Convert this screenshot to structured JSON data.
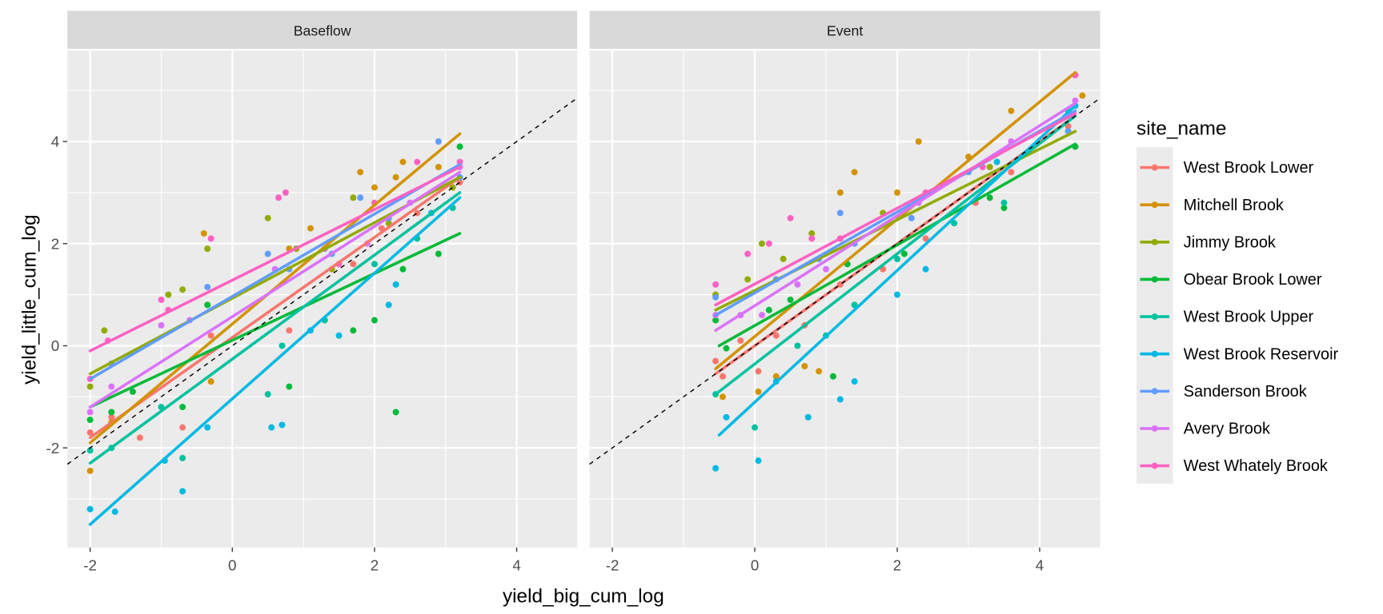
{
  "chart_data": {
    "type": "scatter",
    "facets": [
      "Baseflow",
      "Event"
    ],
    "xlabel": "yield_big_cum_log",
    "ylabel": "yield_little_cum_log",
    "xlim": [
      -2.32,
      4.85
    ],
    "ylim": [
      -3.95,
      5.78
    ],
    "x_ticks": [
      -2,
      0,
      2,
      4
    ],
    "y_ticks": [
      -2,
      0,
      2,
      4
    ],
    "grid": true,
    "reference_line": {
      "type": "identity",
      "style": "dashed",
      "color": "#000000"
    },
    "legend": {
      "title": "site_name",
      "placement": "right"
    },
    "series": [
      {
        "name": "West Brook Lower",
        "color": "#F8766D",
        "fit": {
          "Baseflow": [
            [
              -2,
              -1.8
            ],
            [
              3.2,
              3.3
            ]
          ],
          "Event": [
            [
              -0.55,
              -0.55
            ],
            [
              4.5,
              4.5
            ]
          ]
        },
        "points": {
          "Baseflow": [
            [
              -2,
              -1.7
            ],
            [
              -1.7,
              -1.4
            ],
            [
              -1.3,
              -1.8
            ],
            [
              -0.7,
              -1.6
            ],
            [
              -0.3,
              0.2
            ],
            [
              0.8,
              0.3
            ],
            [
              1.3,
              0.5
            ],
            [
              1.7,
              1.6
            ],
            [
              2.1,
              2.3
            ],
            [
              2.6,
              2.6
            ],
            [
              3.2,
              3.2
            ]
          ],
          "Event": [
            [
              -0.55,
              -0.3
            ],
            [
              -0.45,
              -0.6
            ],
            [
              -0.2,
              0.1
            ],
            [
              0.05,
              -0.5
            ],
            [
              0.3,
              0.2
            ],
            [
              0.7,
              0.4
            ],
            [
              1.2,
              1.2
            ],
            [
              1.8,
              1.5
            ],
            [
              2.4,
              2.1
            ],
            [
              3.1,
              2.8
            ],
            [
              3.6,
              3.4
            ],
            [
              4.4,
              4.3
            ]
          ]
        }
      },
      {
        "name": "Mitchell Brook",
        "color": "#D39200",
        "fit": {
          "Baseflow": [
            [
              -2,
              -1.9
            ],
            [
              3.2,
              4.15
            ]
          ],
          "Event": [
            [
              -0.55,
              -0.45
            ],
            [
              4.5,
              5.35
            ]
          ]
        },
        "points": {
          "Baseflow": [
            [
              -2,
              -2.45
            ],
            [
              -1.7,
              -1.5
            ],
            [
              -0.4,
              2.2
            ],
            [
              -0.3,
              -0.7
            ],
            [
              0.8,
              1.9
            ],
            [
              1.1,
              2.3
            ],
            [
              1.8,
              3.4
            ],
            [
              2.0,
              3.1
            ],
            [
              2.3,
              3.3
            ],
            [
              2.4,
              3.6
            ],
            [
              2.9,
              3.5
            ]
          ],
          "Event": [
            [
              -0.55,
              1.0
            ],
            [
              -0.45,
              -1.0
            ],
            [
              0.05,
              -0.9
            ],
            [
              0.3,
              -0.6
            ],
            [
              0.7,
              -0.4
            ],
            [
              0.9,
              -0.5
            ],
            [
              1.2,
              3.0
            ],
            [
              1.4,
              3.4
            ],
            [
              2.0,
              3.0
            ],
            [
              2.3,
              4.0
            ],
            [
              3.0,
              3.7
            ],
            [
              3.6,
              4.6
            ],
            [
              4.5,
              5.3
            ],
            [
              4.6,
              4.9
            ]
          ]
        }
      },
      {
        "name": "Jimmy Brook",
        "color": "#93AA00",
        "fit": {
          "Baseflow": [
            [
              -2,
              -0.55
            ],
            [
              3.2,
              3.3
            ]
          ],
          "Event": [
            [
              -0.55,
              0.7
            ],
            [
              4.5,
              4.2
            ]
          ]
        },
        "points": {
          "Baseflow": [
            [
              -2,
              -0.8
            ],
            [
              -1.8,
              0.3
            ],
            [
              -0.9,
              1.0
            ],
            [
              -0.7,
              1.1
            ],
            [
              -0.35,
              1.9
            ],
            [
              0.5,
              2.5
            ],
            [
              0.9,
              1.9
            ],
            [
              1.4,
              1.5
            ],
            [
              1.7,
              2.9
            ],
            [
              2.2,
              2.4
            ],
            [
              3.1,
              3.1
            ]
          ],
          "Event": [
            [
              -0.55,
              1.0
            ],
            [
              -0.1,
              1.3
            ],
            [
              0.1,
              2.0
            ],
            [
              0.4,
              1.7
            ],
            [
              0.8,
              2.2
            ],
            [
              1.2,
              2.1
            ],
            [
              1.8,
              2.6
            ],
            [
              2.4,
              3.0
            ],
            [
              3.3,
              3.5
            ],
            [
              4.4,
              4.2
            ]
          ]
        }
      },
      {
        "name": "Obear Brook Lower",
        "color": "#00BA38",
        "fit": {
          "Baseflow": [
            [
              -2,
              -1.2
            ],
            [
              3.2,
              2.2
            ]
          ],
          "Event": [
            [
              -0.5,
              0.0
            ],
            [
              4.5,
              3.95
            ]
          ]
        },
        "points": {
          "Baseflow": [
            [
              -2,
              -1.45
            ],
            [
              -1.7,
              -1.3
            ],
            [
              -1.4,
              -0.9
            ],
            [
              -0.7,
              -1.2
            ],
            [
              -0.35,
              0.8
            ],
            [
              0.8,
              -0.8
            ],
            [
              1.7,
              0.3
            ],
            [
              2.0,
              0.5
            ],
            [
              2.3,
              -1.3
            ],
            [
              2.4,
              1.5
            ],
            [
              2.9,
              1.8
            ],
            [
              3.2,
              3.9
            ]
          ],
          "Event": [
            [
              -0.55,
              0.5
            ],
            [
              -0.4,
              -0.05
            ],
            [
              0.2,
              0.7
            ],
            [
              0.5,
              0.9
            ],
            [
              1.1,
              -0.6
            ],
            [
              1.3,
              1.6
            ],
            [
              2.1,
              1.8
            ],
            [
              3.3,
              2.9
            ],
            [
              3.5,
              2.7
            ],
            [
              4.5,
              3.9
            ]
          ]
        }
      },
      {
        "name": "West Brook Upper",
        "color": "#00C19F",
        "fit": {
          "Baseflow": [
            [
              -2,
              -2.3
            ],
            [
              3.2,
              3.0
            ]
          ],
          "Event": [
            [
              -0.55,
              -0.95
            ],
            [
              4.5,
              4.5
            ]
          ]
        },
        "points": {
          "Baseflow": [
            [
              -2,
              -2.05
            ],
            [
              -1.7,
              -2.0
            ],
            [
              -1.0,
              -1.2
            ],
            [
              -0.7,
              -2.2
            ],
            [
              0.5,
              -0.95
            ],
            [
              0.7,
              0.0
            ],
            [
              1.3,
              0.5
            ],
            [
              2.0,
              1.6
            ],
            [
              2.6,
              2.1
            ],
            [
              3.1,
              2.7
            ]
          ],
          "Event": [
            [
              -0.55,
              -0.95
            ],
            [
              0.0,
              -1.6
            ],
            [
              0.6,
              0.0
            ],
            [
              1.0,
              0.2
            ],
            [
              1.4,
              0.8
            ],
            [
              2.0,
              1.7
            ],
            [
              2.8,
              2.4
            ],
            [
              3.5,
              2.8
            ],
            [
              4.4,
              4.6
            ]
          ]
        }
      },
      {
        "name": "West Brook Reservoir",
        "color": "#00B9E3",
        "fit": {
          "Baseflow": [
            [
              -2,
              -3.5
            ],
            [
              3.2,
              2.9
            ]
          ],
          "Event": [
            [
              -0.5,
              -1.75
            ],
            [
              4.5,
              4.7
            ]
          ]
        },
        "points": {
          "Baseflow": [
            [
              -2,
              -3.2
            ],
            [
              -1.65,
              -3.25
            ],
            [
              -0.95,
              -2.25
            ],
            [
              -0.7,
              -2.85
            ],
            [
              -0.35,
              -1.6
            ],
            [
              0.55,
              -1.6
            ],
            [
              0.7,
              -1.55
            ],
            [
              1.1,
              0.3
            ],
            [
              1.5,
              0.2
            ],
            [
              2.2,
              0.8
            ],
            [
              2.3,
              1.2
            ],
            [
              2.8,
              2.6
            ]
          ],
          "Event": [
            [
              -0.55,
              -2.4
            ],
            [
              -0.4,
              -1.4
            ],
            [
              0.05,
              -2.25
            ],
            [
              0.3,
              -0.7
            ],
            [
              0.75,
              -1.4
            ],
            [
              1.2,
              -1.05
            ],
            [
              1.4,
              -0.7
            ],
            [
              2.0,
              1.0
            ],
            [
              2.4,
              1.5
            ],
            [
              3.4,
              3.6
            ],
            [
              4.5,
              4.7
            ]
          ]
        }
      },
      {
        "name": "Sanderson Brook",
        "color": "#619CFF",
        "fit": {
          "Baseflow": [
            [
              -2,
              -0.65
            ],
            [
              3.2,
              3.55
            ]
          ],
          "Event": [
            [
              -0.55,
              0.6
            ],
            [
              4.5,
              4.6
            ]
          ]
        },
        "points": {
          "Baseflow": [
            [
              -1.7,
              -0.35
            ],
            [
              -0.35,
              1.15
            ],
            [
              0.5,
              1.8
            ],
            [
              0.8,
              1.5
            ],
            [
              1.4,
              1.8
            ],
            [
              1.8,
              2.9
            ],
            [
              2.2,
              2.5
            ],
            [
              2.9,
              4.0
            ],
            [
              3.2,
              3.3
            ]
          ],
          "Event": [
            [
              -0.55,
              0.95
            ],
            [
              0.3,
              1.3
            ],
            [
              0.9,
              1.7
            ],
            [
              1.2,
              2.6
            ],
            [
              1.4,
              2.0
            ],
            [
              2.2,
              2.5
            ],
            [
              3.0,
              3.4
            ],
            [
              4.4,
              4.2
            ]
          ]
        }
      },
      {
        "name": "Avery Brook",
        "color": "#DB72FB",
        "fit": {
          "Baseflow": [
            [
              -2,
              -1.2
            ],
            [
              3.2,
              3.4
            ]
          ],
          "Event": [
            [
              -0.55,
              0.3
            ],
            [
              4.5,
              4.75
            ]
          ]
        },
        "points": {
          "Baseflow": [
            [
              -2,
              -1.3
            ],
            [
              -1.7,
              -0.8
            ],
            [
              -1.0,
              0.4
            ],
            [
              -0.6,
              0.5
            ],
            [
              0.6,
              1.5
            ],
            [
              1.3,
              1.9
            ],
            [
              1.9,
              2.0
            ],
            [
              2.5,
              2.8
            ],
            [
              3.2,
              3.5
            ]
          ],
          "Event": [
            [
              -0.55,
              0.6
            ],
            [
              -0.2,
              0.6
            ],
            [
              0.1,
              0.6
            ],
            [
              0.6,
              1.2
            ],
            [
              1.0,
              1.5
            ],
            [
              2.3,
              2.8
            ],
            [
              3.6,
              4.0
            ],
            [
              4.5,
              4.8
            ]
          ]
        }
      },
      {
        "name": "West Whately Brook",
        "color": "#FF61C3",
        "fit": {
          "Baseflow": [
            [
              -2,
              -0.1
            ],
            [
              3.2,
              3.5
            ]
          ],
          "Event": [
            [
              -0.55,
              0.8
            ],
            [
              4.5,
              4.55
            ]
          ]
        },
        "points": {
          "Baseflow": [
            [
              -2,
              -0.65
            ],
            [
              -1.75,
              0.1
            ],
            [
              -1.0,
              0.9
            ],
            [
              -0.9,
              0.7
            ],
            [
              -0.3,
              2.1
            ],
            [
              0.65,
              2.9
            ],
            [
              0.75,
              3.0
            ],
            [
              1.5,
              1.6
            ],
            [
              2.0,
              2.8
            ],
            [
              2.6,
              3.6
            ],
            [
              3.2,
              3.6
            ]
          ],
          "Event": [
            [
              -0.55,
              1.2
            ],
            [
              -0.1,
              1.8
            ],
            [
              0.2,
              2.0
            ],
            [
              0.5,
              2.5
            ],
            [
              0.8,
              2.1
            ],
            [
              1.2,
              2.1
            ],
            [
              2.4,
              3.0
            ],
            [
              3.2,
              3.5
            ],
            [
              4.5,
              5.3
            ]
          ]
        }
      }
    ]
  }
}
